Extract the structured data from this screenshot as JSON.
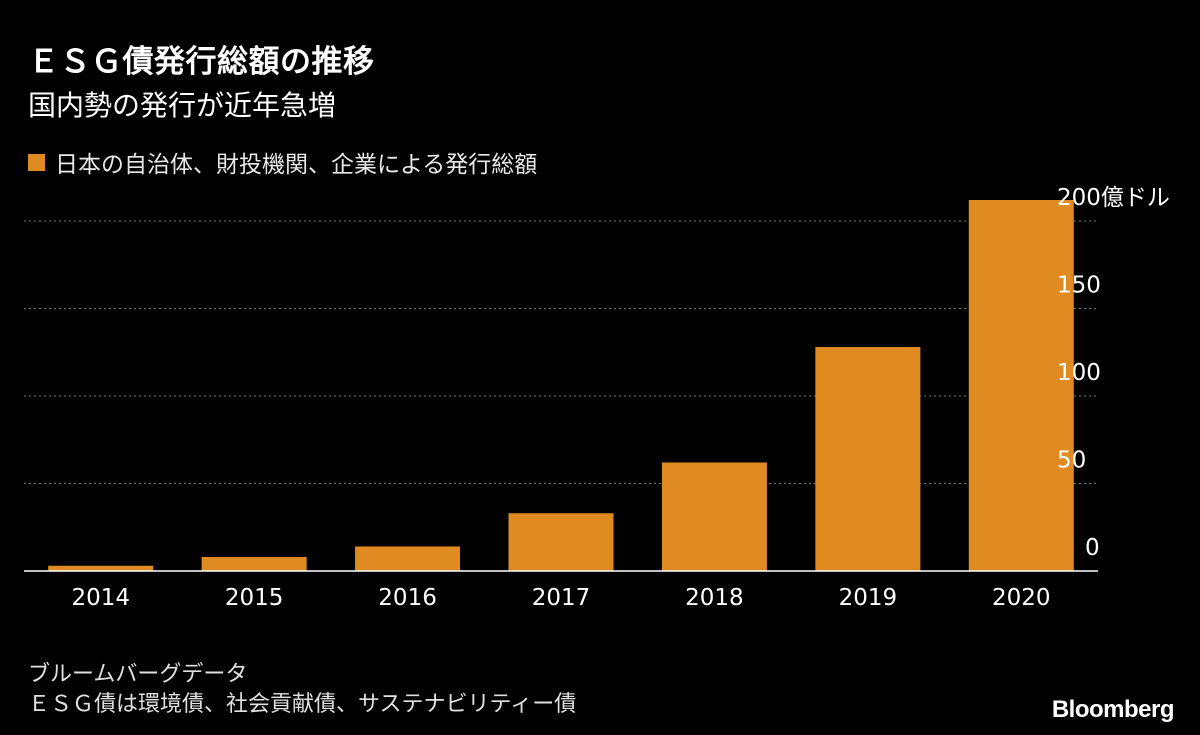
{
  "header": {
    "title": "ＥＳＧ債発行総額の推移",
    "subtitle": "国内勢の発行が近年急増"
  },
  "legend": {
    "label": "日本の自治体、財投機関、企業による発行総額"
  },
  "footer": {
    "source": "ブルームバーグデータ",
    "note": "ＥＳＧ債は環境債、社会貢献債、サステナビリティー債",
    "brand": "Bloomberg"
  },
  "colors": {
    "background": "#000000",
    "bar": "#e08b22",
    "grid": "#7a7a7a",
    "axis": "#ffffff",
    "text": "#ffffff"
  },
  "chart_data": {
    "type": "bar",
    "title": "ＥＳＧ債発行総額の推移",
    "subtitle": "国内勢の発行が近年急増",
    "categories": [
      "2014",
      "2015",
      "2016",
      "2017",
      "2018",
      "2019",
      "2020"
    ],
    "series": [
      {
        "name": "日本の自治体、財投機関、企業による発行総額",
        "values": [
          3,
          8,
          14,
          33,
          62,
          128,
          212
        ]
      }
    ],
    "xlabel": "",
    "ylabel": "",
    "y_unit": "億ドル",
    "y_ticks": [
      0,
      50,
      100,
      150,
      200
    ],
    "y_tick_labels": [
      "0",
      "50",
      "100",
      "150",
      "200億ドル"
    ],
    "ylim": [
      0,
      200
    ],
    "grid": true,
    "y_axis_side": "right",
    "legend_position": "top-left"
  }
}
